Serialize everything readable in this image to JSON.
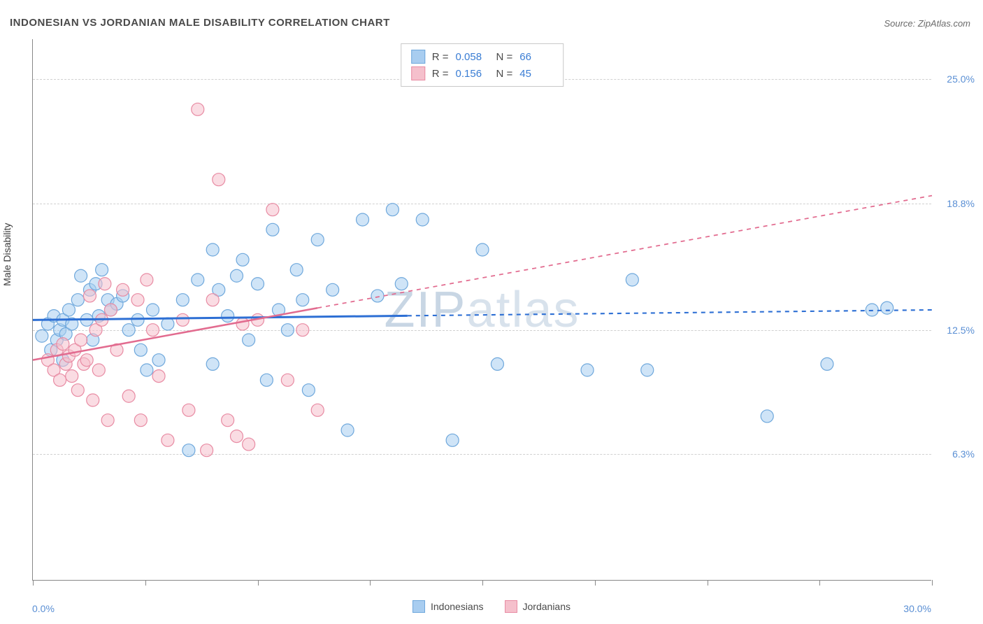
{
  "title": "INDONESIAN VS JORDANIAN MALE DISABILITY CORRELATION CHART",
  "source": "Source: ZipAtlas.com",
  "y_axis_label": "Male Disability",
  "watermark": "ZIPatlas",
  "chart": {
    "type": "scatter",
    "xlim": [
      0,
      30
    ],
    "ylim": [
      0,
      27
    ],
    "y_gridlines": [
      6.3,
      12.5,
      18.8,
      25.0
    ],
    "y_tick_labels": [
      "6.3%",
      "12.5%",
      "18.8%",
      "25.0%"
    ],
    "x_ticks": [
      0,
      3.75,
      7.5,
      11.25,
      15,
      18.75,
      22.5,
      26.25,
      30
    ],
    "x_min_label": "0.0%",
    "x_max_label": "30.0%",
    "background_color": "#ffffff",
    "grid_color": "#d0d0d0",
    "axis_color": "#888888",
    "marker_radius": 9,
    "marker_opacity": 0.55,
    "series": [
      {
        "name": "Indonesians",
        "color_fill": "#a8cdf0",
        "color_stroke": "#6fa8dc",
        "R": "0.058",
        "N": "66",
        "trend": {
          "x1": 0,
          "y1": 13.0,
          "x2": 30,
          "y2": 13.5,
          "solid_until": 12.5,
          "stroke": "#2d6fd4",
          "stroke_width": 3
        },
        "points": [
          [
            0.3,
            12.2
          ],
          [
            0.5,
            12.8
          ],
          [
            0.6,
            11.5
          ],
          [
            0.7,
            13.2
          ],
          [
            0.8,
            12.0
          ],
          [
            0.9,
            12.5
          ],
          [
            1.0,
            11.0
          ],
          [
            1.0,
            13.0
          ],
          [
            1.1,
            12.3
          ],
          [
            1.2,
            13.5
          ],
          [
            1.3,
            12.8
          ],
          [
            1.5,
            14.0
          ],
          [
            1.6,
            15.2
          ],
          [
            1.8,
            13.0
          ],
          [
            1.9,
            14.5
          ],
          [
            2.0,
            12.0
          ],
          [
            2.1,
            14.8
          ],
          [
            2.2,
            13.2
          ],
          [
            2.3,
            15.5
          ],
          [
            2.5,
            14.0
          ],
          [
            2.6,
            13.5
          ],
          [
            2.8,
            13.8
          ],
          [
            3.0,
            14.2
          ],
          [
            3.2,
            12.5
          ],
          [
            3.5,
            13.0
          ],
          [
            3.8,
            10.5
          ],
          [
            4.0,
            13.5
          ],
          [
            4.2,
            11.0
          ],
          [
            4.5,
            12.8
          ],
          [
            5.0,
            14.0
          ],
          [
            5.2,
            6.5
          ],
          [
            5.5,
            15.0
          ],
          [
            6.0,
            16.5
          ],
          [
            6.2,
            14.5
          ],
          [
            6.5,
            13.2
          ],
          [
            6.8,
            15.2
          ],
          [
            7.0,
            16.0
          ],
          [
            7.2,
            12.0
          ],
          [
            7.5,
            14.8
          ],
          [
            7.8,
            10.0
          ],
          [
            8.0,
            17.5
          ],
          [
            8.2,
            13.5
          ],
          [
            8.5,
            12.5
          ],
          [
            9.0,
            14.0
          ],
          [
            9.2,
            9.5
          ],
          [
            9.5,
            17.0
          ],
          [
            10.0,
            14.5
          ],
          [
            10.5,
            7.5
          ],
          [
            11.0,
            18.0
          ],
          [
            11.5,
            14.2
          ],
          [
            12.0,
            18.5
          ],
          [
            12.3,
            14.8
          ],
          [
            13.0,
            18.0
          ],
          [
            14.0,
            7.0
          ],
          [
            15.0,
            16.5
          ],
          [
            15.5,
            10.8
          ],
          [
            18.5,
            10.5
          ],
          [
            20.0,
            15.0
          ],
          [
            20.5,
            10.5
          ],
          [
            24.5,
            8.2
          ],
          [
            26.5,
            10.8
          ],
          [
            28.0,
            13.5
          ],
          [
            28.5,
            13.6
          ],
          [
            8.8,
            15.5
          ],
          [
            6.0,
            10.8
          ],
          [
            3.6,
            11.5
          ]
        ]
      },
      {
        "name": "Jordanians",
        "color_fill": "#f5c0cc",
        "color_stroke": "#e88ba3",
        "R": "0.156",
        "N": "45",
        "trend": {
          "x1": 0,
          "y1": 11.0,
          "x2": 30,
          "y2": 19.2,
          "solid_until": 9.5,
          "stroke": "#e26b8f",
          "stroke_width": 2.5
        },
        "points": [
          [
            0.5,
            11.0
          ],
          [
            0.7,
            10.5
          ],
          [
            0.8,
            11.5
          ],
          [
            0.9,
            10.0
          ],
          [
            1.0,
            11.8
          ],
          [
            1.1,
            10.8
          ],
          [
            1.2,
            11.2
          ],
          [
            1.3,
            10.2
          ],
          [
            1.4,
            11.5
          ],
          [
            1.5,
            9.5
          ],
          [
            1.6,
            12.0
          ],
          [
            1.7,
            10.8
          ],
          [
            1.8,
            11.0
          ],
          [
            2.0,
            9.0
          ],
          [
            2.1,
            12.5
          ],
          [
            2.2,
            10.5
          ],
          [
            2.3,
            13.0
          ],
          [
            2.5,
            8.0
          ],
          [
            2.6,
            13.5
          ],
          [
            2.8,
            11.5
          ],
          [
            3.0,
            14.5
          ],
          [
            3.2,
            9.2
          ],
          [
            3.5,
            14.0
          ],
          [
            3.6,
            8.0
          ],
          [
            3.8,
            15.0
          ],
          [
            4.0,
            12.5
          ],
          [
            4.5,
            7.0
          ],
          [
            5.0,
            13.0
          ],
          [
            5.2,
            8.5
          ],
          [
            5.5,
            23.5
          ],
          [
            5.8,
            6.5
          ],
          [
            6.0,
            14.0
          ],
          [
            6.2,
            20.0
          ],
          [
            6.5,
            8.0
          ],
          [
            7.0,
            12.8
          ],
          [
            7.2,
            6.8
          ],
          [
            7.5,
            13.0
          ],
          [
            8.0,
            18.5
          ],
          [
            8.5,
            10.0
          ],
          [
            9.0,
            12.5
          ],
          [
            9.5,
            8.5
          ],
          [
            2.4,
            14.8
          ],
          [
            1.9,
            14.2
          ],
          [
            4.2,
            10.2
          ],
          [
            6.8,
            7.2
          ]
        ]
      }
    ]
  },
  "stats_box": {
    "rows": [
      {
        "swatch_fill": "#a8cdf0",
        "swatch_stroke": "#6fa8dc",
        "r_label": "R =",
        "r_value": "0.058",
        "n_label": "N =",
        "n_value": "66"
      },
      {
        "swatch_fill": "#f5c0cc",
        "swatch_stroke": "#e88ba3",
        "r_label": "R =",
        "r_value": "0.156",
        "n_label": "N =",
        "n_value": "45"
      }
    ]
  },
  "bottom_legend": [
    {
      "label": "Indonesians",
      "fill": "#a8cdf0",
      "stroke": "#6fa8dc"
    },
    {
      "label": "Jordanians",
      "fill": "#f5c0cc",
      "stroke": "#e88ba3"
    }
  ]
}
